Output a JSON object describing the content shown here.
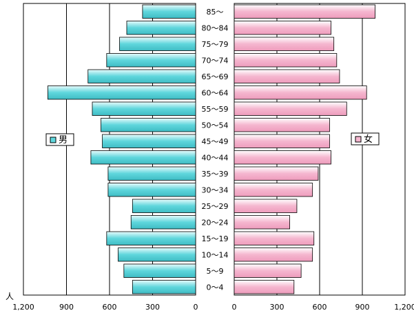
{
  "chart_data": {
    "type": "bar",
    "subtype": "population-pyramid",
    "categories": [
      "85～",
      "80～84",
      "75～79",
      "70～74",
      "65～69",
      "60～64",
      "55～59",
      "50～54",
      "45～49",
      "40～44",
      "35～39",
      "30～34",
      "25～29",
      "20～24",
      "15～19",
      "10～14",
      "5～9",
      "0～4"
    ],
    "series": [
      {
        "name": "男",
        "color": "#5fd6dc",
        "side": "left",
        "values": [
          370,
          480,
          530,
          620,
          750,
          1030,
          720,
          660,
          650,
          730,
          610,
          610,
          440,
          450,
          620,
          540,
          500,
          440
        ]
      },
      {
        "name": "女",
        "color": "#f5b6cf",
        "side": "right",
        "values": [
          990,
          680,
          700,
          720,
          740,
          930,
          790,
          670,
          670,
          680,
          590,
          550,
          440,
          390,
          560,
          550,
          470,
          420
        ]
      }
    ],
    "x_ticks_left": [
      "1,200",
      "900",
      "600",
      "300",
      "0"
    ],
    "x_ticks_right": [
      "0",
      "300",
      "600",
      "900",
      "1,200"
    ],
    "xlim": [
      0,
      1200
    ],
    "unit_label": "人",
    "legend": [
      {
        "label": "男",
        "placement": "left"
      },
      {
        "label": "女",
        "placement": "right"
      }
    ],
    "grid": true
  }
}
